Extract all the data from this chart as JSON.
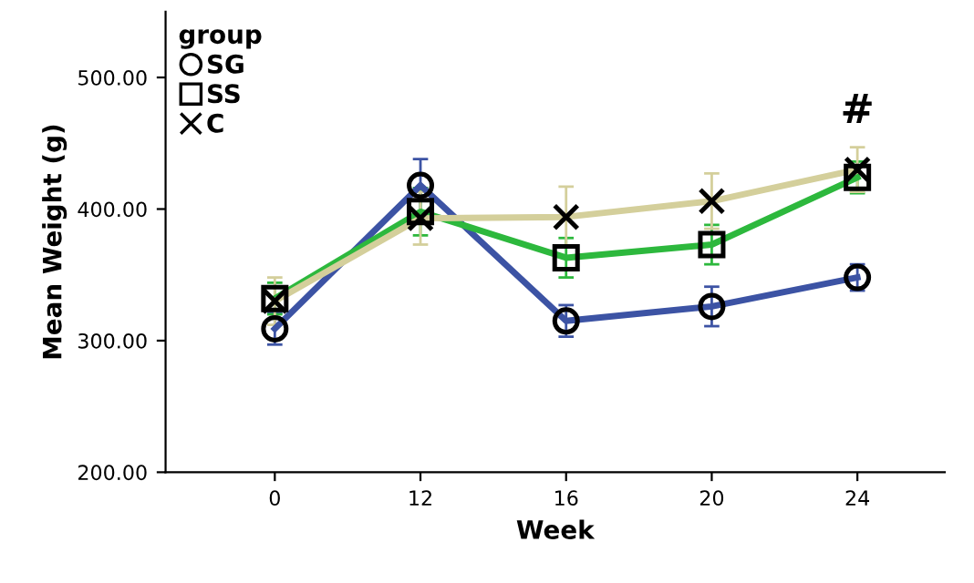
{
  "chart_data": {
    "type": "line",
    "xlabel": "Week",
    "ylabel": "Mean Weight (g)",
    "legend_title": "group",
    "legend": "top left",
    "categories": [
      "0",
      "12",
      "16",
      "20",
      "24"
    ],
    "ylim": [
      200,
      550
    ],
    "yticks": [
      {
        "value": 200,
        "label": "200.00"
      },
      {
        "value": 300,
        "label": "300.00"
      },
      {
        "value": 400,
        "label": "400.00"
      },
      {
        "value": 500,
        "label": "500.00"
      }
    ],
    "grid": false,
    "line_style": "solid",
    "series": [
      {
        "name": "SG",
        "color": "#3c53a4",
        "marker": "circle",
        "values": [
          309,
          418,
          315,
          326,
          348
        ],
        "errors": [
          12,
          20,
          12,
          15,
          10
        ]
      },
      {
        "name": "SS",
        "color": "#2db83d",
        "marker": "square",
        "values": [
          332,
          398,
          363,
          373,
          424
        ],
        "errors": [
          12,
          18,
          15,
          15,
          12
        ]
      },
      {
        "name": "C",
        "color": "#d4cf9b",
        "marker": "cross",
        "values": [
          330,
          393,
          394,
          406,
          430
        ],
        "errors": [
          18,
          20,
          23,
          21,
          17
        ]
      }
    ],
    "annotations": [
      "#"
    ]
  }
}
